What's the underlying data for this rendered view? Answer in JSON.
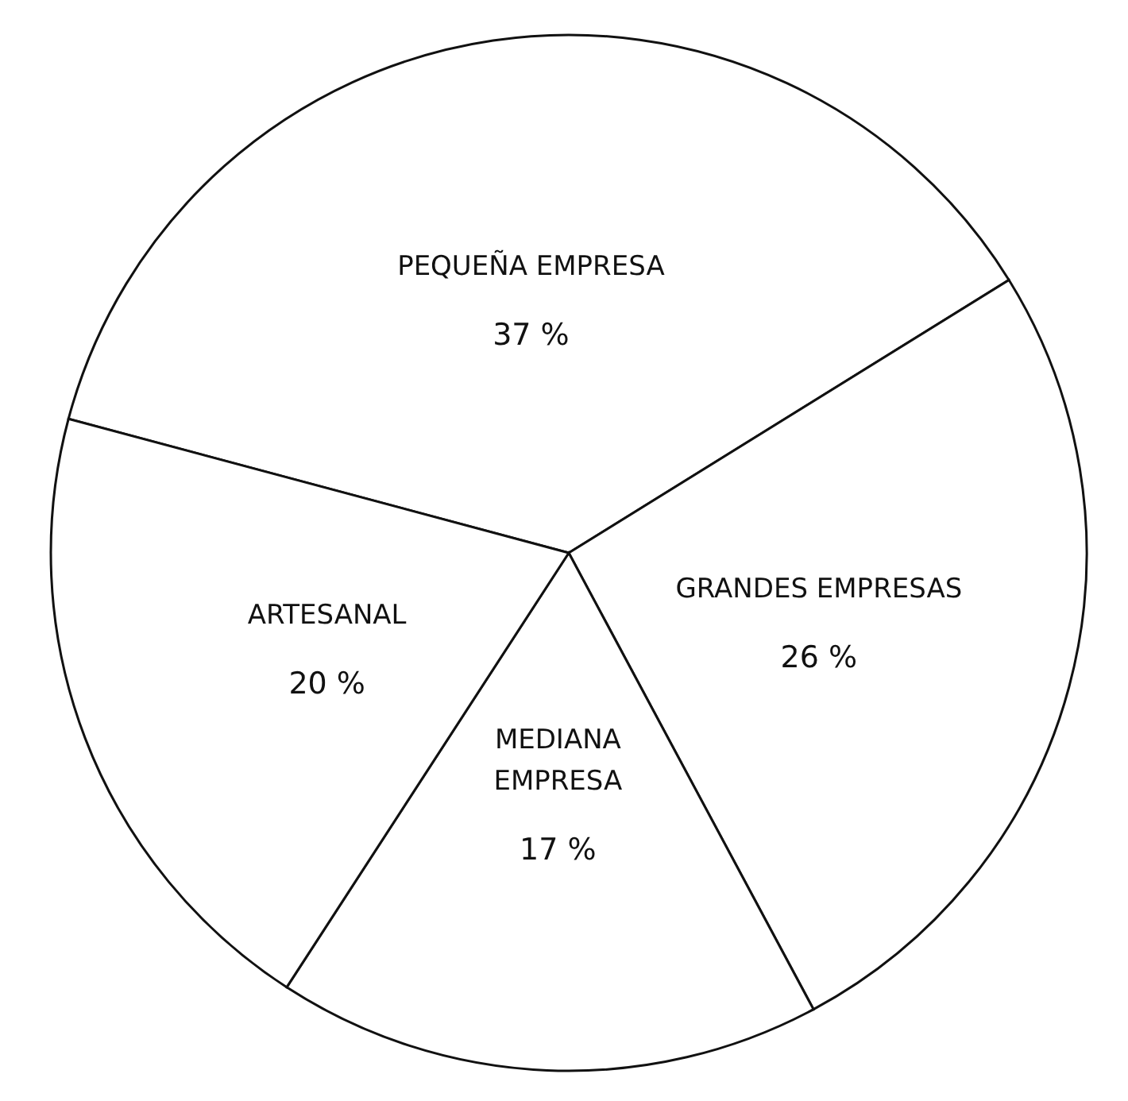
{
  "chart_data": {
    "type": "pie",
    "categories": [
      "PEQUEÑA EMPRESA",
      "GRANDES EMPRESAS",
      "MEDIANA EMPRESA",
      "ARTESANAL"
    ],
    "values": [
      37,
      26,
      17,
      20
    ],
    "colors": [
      "#ffffff",
      "#ffffff",
      "#ffffff",
      "#ffffff"
    ],
    "value_labels": [
      "37 %",
      "26 %",
      "17 %",
      "20 %"
    ]
  }
}
